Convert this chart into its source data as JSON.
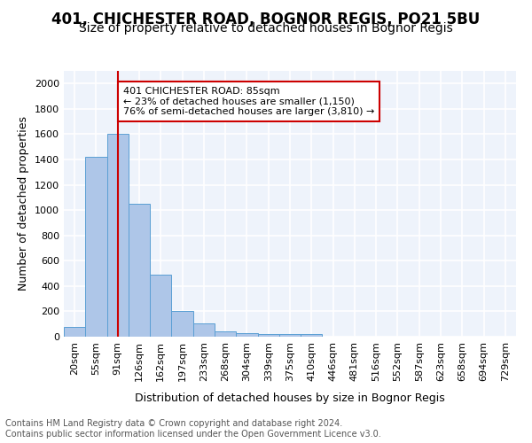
{
  "title1": "401, CHICHESTER ROAD, BOGNOR REGIS, PO21 5BU",
  "title2": "Size of property relative to detached houses in Bognor Regis",
  "xlabel": "Distribution of detached houses by size in Bognor Regis",
  "ylabel": "Number of detached properties",
  "footnote": "Contains HM Land Registry data © Crown copyright and database right 2024.\nContains public sector information licensed under the Open Government Licence v3.0.",
  "bin_labels": [
    "20sqm",
    "55sqm",
    "91sqm",
    "126sqm",
    "162sqm",
    "197sqm",
    "233sqm",
    "268sqm",
    "304sqm",
    "339sqm",
    "375sqm",
    "410sqm",
    "446sqm",
    "481sqm",
    "516sqm",
    "552sqm",
    "587sqm",
    "623sqm",
    "658sqm",
    "694sqm",
    "729sqm"
  ],
  "bar_heights": [
    80,
    1420,
    1600,
    1050,
    490,
    205,
    105,
    40,
    28,
    22,
    18,
    18,
    0,
    0,
    0,
    0,
    0,
    0,
    0,
    0,
    0
  ],
  "bar_color": "#aec6e8",
  "bar_edge_color": "#5a9fd4",
  "background_color": "#eef3fb",
  "grid_color": "#ffffff",
  "red_line_x_label": "91sqm",
  "red_line_color": "#cc0000",
  "annotation_box_text": "401 CHICHESTER ROAD: 85sqm\n← 23% of detached houses are smaller (1,150)\n76% of semi-detached houses are larger (3,810) →",
  "ylim": [
    0,
    2100
  ],
  "yticks": [
    0,
    200,
    400,
    600,
    800,
    1000,
    1200,
    1400,
    1600,
    1800,
    2000
  ],
  "title1_fontsize": 12,
  "title2_fontsize": 10,
  "xlabel_fontsize": 9,
  "ylabel_fontsize": 9,
  "tick_fontsize": 8,
  "annotation_fontsize": 8,
  "footnote_fontsize": 7
}
